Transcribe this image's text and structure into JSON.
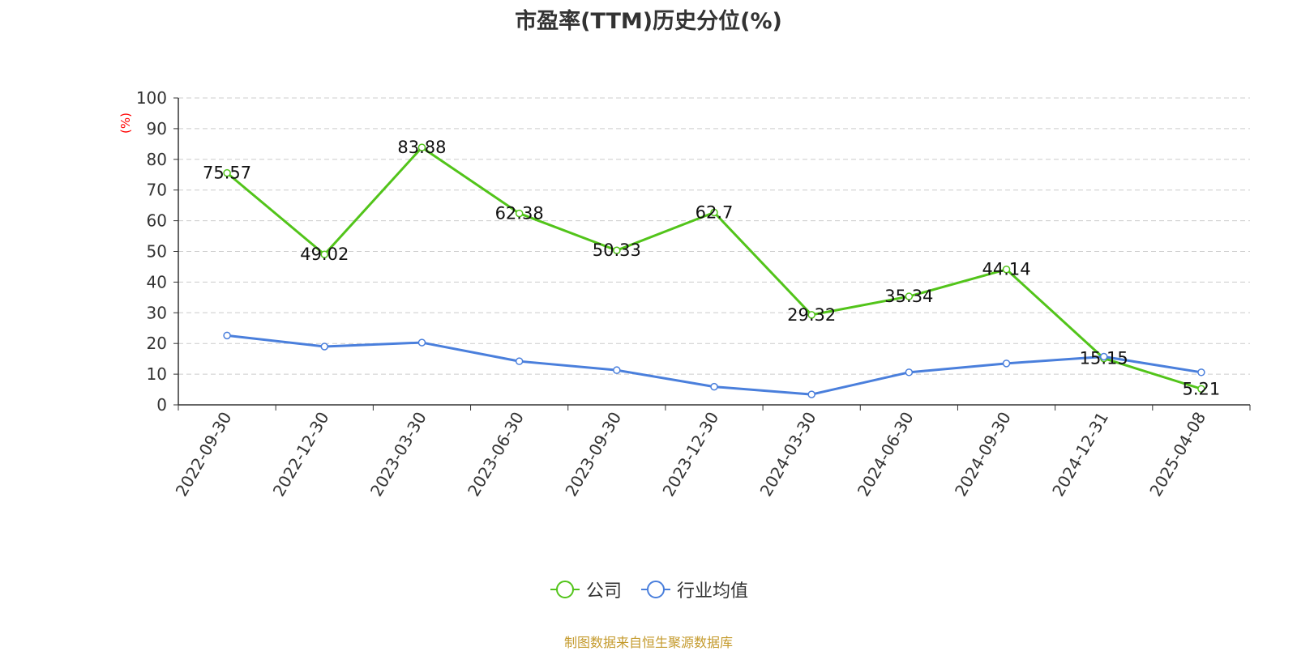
{
  "title": "市盈率(TTM)历史分位(%)",
  "source_note": "制图数据来自恒生聚源数据库",
  "colors": {
    "company": "#52c41a",
    "industry": "#4a7fdc",
    "ylabel": "#ff0000",
    "axis": "#333333",
    "grid": "#cccccc",
    "source": "#c49a2c"
  },
  "chart_data": {
    "type": "line",
    "title": "市盈率(TTM)历史分位(%)",
    "ylabel": "(%)",
    "xlabel": "",
    "ylim": [
      0,
      100
    ],
    "yticks": [
      0,
      10,
      20,
      30,
      40,
      50,
      60,
      70,
      80,
      90,
      100
    ],
    "grid": true,
    "legend_position": "bottom",
    "categories": [
      "2022-09-30",
      "2022-12-30",
      "2023-03-30",
      "2023-06-30",
      "2023-09-30",
      "2023-12-30",
      "2024-03-30",
      "2024-06-30",
      "2024-09-30",
      "2024-12-31",
      "2025-04-08"
    ],
    "series": [
      {
        "name": "公司",
        "values": [
          75.57,
          49.02,
          83.88,
          62.38,
          50.33,
          62.7,
          29.32,
          35.34,
          44.14,
          15.15,
          5.21
        ],
        "color": "#52c41a",
        "show_labels": true
      },
      {
        "name": "行业均值",
        "values": [
          22.6,
          19.0,
          20.3,
          14.2,
          11.3,
          5.9,
          3.4,
          10.6,
          13.5,
          15.7,
          10.6
        ],
        "color": "#4a7fdc",
        "show_labels": false
      }
    ]
  }
}
